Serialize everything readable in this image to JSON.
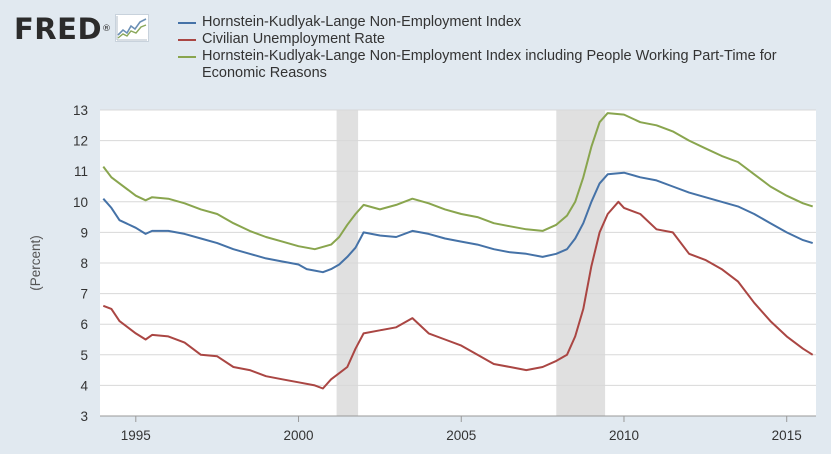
{
  "brand": {
    "logo_text": "FRED",
    "registered": "®"
  },
  "chart_data": {
    "type": "line",
    "title": "",
    "xlabel": "",
    "ylabel": "(Percent)",
    "xlim": [
      1993.9,
      2015.9
    ],
    "ylim": [
      3,
      13
    ],
    "yticks": [
      3,
      4,
      5,
      6,
      7,
      8,
      9,
      10,
      11,
      12,
      13
    ],
    "xticks": [
      1995,
      2000,
      2005,
      2010,
      2015
    ],
    "grid": "horizontal",
    "legend": "top",
    "recessions": [
      [
        2001.17,
        2001.83
      ],
      [
        2007.92,
        2009.42
      ]
    ],
    "colors": {
      "recession": "#e0e0e0",
      "background": "#e1e9f0",
      "plot_bg": "#ffffff",
      "grid": "#d8d8d8"
    },
    "series": [
      {
        "name": "Hornstein-Kudlyak-Lange Non-Employment Index",
        "color": "#4572a7",
        "points": [
          [
            1994.0,
            10.1
          ],
          [
            1994.25,
            9.8
          ],
          [
            1994.5,
            9.4
          ],
          [
            1995.0,
            9.15
          ],
          [
            1995.3,
            8.95
          ],
          [
            1995.5,
            9.05
          ],
          [
            1996.0,
            9.05
          ],
          [
            1996.5,
            8.95
          ],
          [
            1997.0,
            8.8
          ],
          [
            1997.5,
            8.65
          ],
          [
            1998.0,
            8.45
          ],
          [
            1998.5,
            8.3
          ],
          [
            1999.0,
            8.15
          ],
          [
            1999.5,
            8.05
          ],
          [
            2000.0,
            7.95
          ],
          [
            2000.25,
            7.8
          ],
          [
            2000.5,
            7.75
          ],
          [
            2000.75,
            7.7
          ],
          [
            2001.0,
            7.8
          ],
          [
            2001.25,
            7.95
          ],
          [
            2001.5,
            8.2
          ],
          [
            2001.75,
            8.5
          ],
          [
            2001.9,
            8.8
          ],
          [
            2002.0,
            9.0
          ],
          [
            2002.5,
            8.9
          ],
          [
            2003.0,
            8.85
          ],
          [
            2003.5,
            9.05
          ],
          [
            2004.0,
            8.95
          ],
          [
            2004.5,
            8.8
          ],
          [
            2005.0,
            8.7
          ],
          [
            2005.5,
            8.6
          ],
          [
            2006.0,
            8.45
          ],
          [
            2006.5,
            8.35
          ],
          [
            2007.0,
            8.3
          ],
          [
            2007.5,
            8.2
          ],
          [
            2007.92,
            8.3
          ],
          [
            2008.25,
            8.45
          ],
          [
            2008.5,
            8.8
          ],
          [
            2008.75,
            9.3
          ],
          [
            2009.0,
            10.0
          ],
          [
            2009.25,
            10.6
          ],
          [
            2009.5,
            10.9
          ],
          [
            2010.0,
            10.95
          ],
          [
            2010.5,
            10.8
          ],
          [
            2011.0,
            10.7
          ],
          [
            2011.5,
            10.5
          ],
          [
            2012.0,
            10.3
          ],
          [
            2012.5,
            10.15
          ],
          [
            2013.0,
            10.0
          ],
          [
            2013.5,
            9.85
          ],
          [
            2014.0,
            9.6
          ],
          [
            2014.5,
            9.3
          ],
          [
            2015.0,
            9.0
          ],
          [
            2015.5,
            8.75
          ],
          [
            2015.8,
            8.65
          ]
        ]
      },
      {
        "name": "Civilian Unemployment Rate",
        "color": "#aa4643",
        "points": [
          [
            1994.0,
            6.6
          ],
          [
            1994.25,
            6.5
          ],
          [
            1994.5,
            6.1
          ],
          [
            1995.0,
            5.7
          ],
          [
            1995.3,
            5.5
          ],
          [
            1995.5,
            5.65
          ],
          [
            1996.0,
            5.6
          ],
          [
            1996.5,
            5.4
          ],
          [
            1997.0,
            5.0
          ],
          [
            1997.5,
            4.95
          ],
          [
            1998.0,
            4.6
          ],
          [
            1998.5,
            4.5
          ],
          [
            1999.0,
            4.3
          ],
          [
            1999.5,
            4.2
          ],
          [
            2000.0,
            4.1
          ],
          [
            2000.5,
            4.0
          ],
          [
            2000.75,
            3.9
          ],
          [
            2001.0,
            4.2
          ],
          [
            2001.25,
            4.4
          ],
          [
            2001.5,
            4.6
          ],
          [
            2001.75,
            5.2
          ],
          [
            2002.0,
            5.7
          ],
          [
            2002.5,
            5.8
          ],
          [
            2003.0,
            5.9
          ],
          [
            2003.5,
            6.2
          ],
          [
            2004.0,
            5.7
          ],
          [
            2004.5,
            5.5
          ],
          [
            2005.0,
            5.3
          ],
          [
            2005.5,
            5.0
          ],
          [
            2006.0,
            4.7
          ],
          [
            2006.5,
            4.6
          ],
          [
            2007.0,
            4.5
          ],
          [
            2007.5,
            4.6
          ],
          [
            2007.92,
            4.8
          ],
          [
            2008.25,
            5.0
          ],
          [
            2008.5,
            5.6
          ],
          [
            2008.75,
            6.5
          ],
          [
            2009.0,
            7.9
          ],
          [
            2009.25,
            9.0
          ],
          [
            2009.5,
            9.6
          ],
          [
            2009.83,
            10.0
          ],
          [
            2010.0,
            9.8
          ],
          [
            2010.5,
            9.6
          ],
          [
            2011.0,
            9.1
          ],
          [
            2011.5,
            9.0
          ],
          [
            2012.0,
            8.3
          ],
          [
            2012.5,
            8.1
          ],
          [
            2013.0,
            7.8
          ],
          [
            2013.5,
            7.4
          ],
          [
            2014.0,
            6.7
          ],
          [
            2014.5,
            6.1
          ],
          [
            2015.0,
            5.6
          ],
          [
            2015.5,
            5.2
          ],
          [
            2015.8,
            5.0
          ]
        ]
      },
      {
        "name": "Hornstein-Kudlyak-Lange Non-Employment Index including People Working Part-Time for Economic Reasons",
        "color": "#89a54e",
        "points": [
          [
            1994.0,
            11.15
          ],
          [
            1994.25,
            10.8
          ],
          [
            1994.5,
            10.6
          ],
          [
            1995.0,
            10.2
          ],
          [
            1995.3,
            10.05
          ],
          [
            1995.5,
            10.15
          ],
          [
            1996.0,
            10.1
          ],
          [
            1996.5,
            9.95
          ],
          [
            1997.0,
            9.75
          ],
          [
            1997.5,
            9.6
          ],
          [
            1998.0,
            9.3
          ],
          [
            1998.5,
            9.05
          ],
          [
            1999.0,
            8.85
          ],
          [
            1999.5,
            8.7
          ],
          [
            2000.0,
            8.55
          ],
          [
            2000.5,
            8.45
          ],
          [
            2001.0,
            8.6
          ],
          [
            2001.25,
            8.85
          ],
          [
            2001.5,
            9.25
          ],
          [
            2001.75,
            9.6
          ],
          [
            2002.0,
            9.9
          ],
          [
            2002.5,
            9.75
          ],
          [
            2003.0,
            9.9
          ],
          [
            2003.5,
            10.1
          ],
          [
            2004.0,
            9.95
          ],
          [
            2004.5,
            9.75
          ],
          [
            2005.0,
            9.6
          ],
          [
            2005.5,
            9.5
          ],
          [
            2006.0,
            9.3
          ],
          [
            2006.5,
            9.2
          ],
          [
            2007.0,
            9.1
          ],
          [
            2007.5,
            9.05
          ],
          [
            2007.92,
            9.25
          ],
          [
            2008.25,
            9.55
          ],
          [
            2008.5,
            10.0
          ],
          [
            2008.75,
            10.8
          ],
          [
            2009.0,
            11.8
          ],
          [
            2009.25,
            12.6
          ],
          [
            2009.5,
            12.9
          ],
          [
            2010.0,
            12.85
          ],
          [
            2010.5,
            12.6
          ],
          [
            2011.0,
            12.5
          ],
          [
            2011.5,
            12.3
          ],
          [
            2012.0,
            12.0
          ],
          [
            2012.5,
            11.75
          ],
          [
            2013.0,
            11.5
          ],
          [
            2013.5,
            11.3
          ],
          [
            2014.0,
            10.9
          ],
          [
            2014.5,
            10.5
          ],
          [
            2015.0,
            10.2
          ],
          [
            2015.5,
            9.95
          ],
          [
            2015.8,
            9.85
          ]
        ]
      }
    ]
  }
}
